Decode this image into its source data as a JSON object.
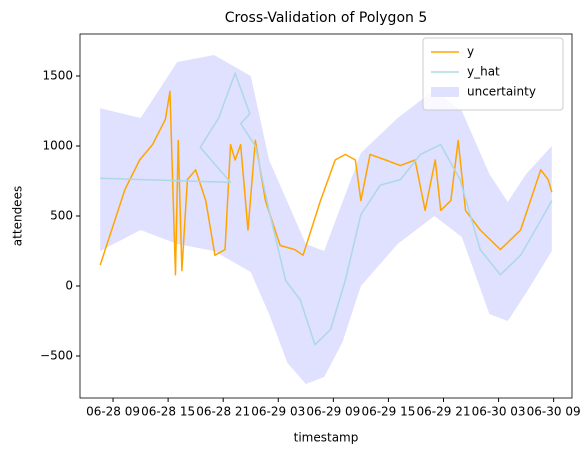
{
  "chart_data": {
    "type": "line",
    "title": "Cross-Validation of Polygon 5",
    "x_label": "timestamp",
    "y_label": "attendees",
    "xlim": [
      "06-28 05:24",
      "06-30 11:00"
    ],
    "xticks": [
      {
        "value": "06-28 09:00",
        "label": "06-28 09"
      },
      {
        "value": "06-28 15:00",
        "label": "06-28 15"
      },
      {
        "value": "06-28 21:00",
        "label": "06-28 21"
      },
      {
        "value": "06-29 03:00",
        "label": "06-29 03"
      },
      {
        "value": "06-29 09:00",
        "label": "06-29 09"
      },
      {
        "value": "06-29 15:00",
        "label": "06-29 15"
      },
      {
        "value": "06-29 21:00",
        "label": "06-29 21"
      },
      {
        "value": "06-30 03:00",
        "label": "06-30 03"
      },
      {
        "value": "06-30 09:00",
        "label": "06-30 09"
      }
    ],
    "ylim": [
      -800,
      1800
    ],
    "yticks": [
      {
        "value": -500,
        "label": "−500"
      },
      0,
      500,
      1000,
      1500
    ],
    "legend": "upper right",
    "band": {
      "name": "uncertainty",
      "color": "#e0e0ff",
      "x": [
        "06-28 07:36",
        "06-28 12:00",
        "06-28 16:00",
        "06-28 20:00",
        "06-29 00:00",
        "06-29 02:00",
        "06-29 04:00",
        "06-29 06:00",
        "06-29 08:00",
        "06-29 10:00",
        "06-29 12:00",
        "06-29 16:00",
        "06-29 20:00",
        "06-29 23:00",
        "06-30 02:00",
        "06-30 04:00",
        "06-30 06:00",
        "06-30 08:48"
      ],
      "lower": [
        250,
        400,
        300,
        250,
        100,
        -200,
        -550,
        -700,
        -650,
        -400,
        0,
        300,
        500,
        350,
        -200,
        -250,
        -50,
        250
      ],
      "upper": [
        1270,
        1200,
        1600,
        1650,
        1500,
        900,
        600,
        300,
        250,
        600,
        950,
        1200,
        1400,
        1250,
        800,
        600,
        800,
        1000
      ]
    },
    "series": [
      {
        "name": "y",
        "color": "#ffa500",
        "x": [
          "06-28 07:36",
          "06-28 09:12",
          "06-28 10:18",
          "06-28 11:54",
          "06-28 13:18",
          "06-28 14:42",
          "06-28 15:12",
          "06-28 15:48",
          "06-28 16:06",
          "06-28 16:30",
          "06-28 17:06",
          "06-28 18:00",
          "06-28 19:06",
          "06-28 20:06",
          "06-28 21:12",
          "06-28 21:48",
          "06-28 22:18",
          "06-28 22:54",
          "06-28 23:42",
          "06-29 00:30",
          "06-29 01:36",
          "06-29 03:12",
          "06-29 04:48",
          "06-29 05:42",
          "06-29 07:36",
          "06-29 09:12",
          "06-29 10:18",
          "06-29 11:24",
          "06-29 12:00",
          "06-29 13:00",
          "06-29 14:42",
          "06-29 16:18",
          "06-29 17:54",
          "06-29 19:00",
          "06-29 20:06",
          "06-29 20:42",
          "06-29 21:48",
          "06-29 22:36",
          "06-29 23:24",
          "06-30 01:00",
          "06-30 03:12",
          "06-30 05:24",
          "06-30 07:36",
          "06-30 08:24",
          "06-30 08:48"
        ],
        "values": [
          150,
          470,
          690,
          900,
          1010,
          1190,
          1390,
          80,
          1040,
          110,
          760,
          830,
          610,
          220,
          260,
          1010,
          900,
          1010,
          400,
          1040,
          610,
          290,
          260,
          220,
          610,
          900,
          940,
          900,
          610,
          940,
          900,
          860,
          900,
          540,
          900,
          540,
          610,
          1040,
          540,
          400,
          260,
          400,
          830,
          760,
          670
        ]
      },
      {
        "name": "y_hat",
        "color": "#add8e6",
        "x": [
          "06-28 07:36",
          "06-28 21:48",
          "06-28 18:30",
          "06-28 20:30",
          "06-28 22:18",
          "06-28 23:54",
          "06-28 22:54",
          "06-29 00:30",
          "06-29 02:06",
          "06-29 03:48",
          "06-29 05:24",
          "06-29 07:00",
          "06-29 08:42",
          "06-29 10:18",
          "06-29 12:00",
          "06-29 14:06",
          "06-29 16:18",
          "06-29 18:30",
          "06-29 20:42",
          "06-29 22:48",
          "06-30 01:00",
          "06-30 03:12",
          "06-30 05:24",
          "06-30 07:36",
          "06-30 08:48"
        ],
        "values": [
          770,
          740,
          990,
          1200,
          1520,
          1230,
          1160,
          1000,
          510,
          40,
          -100,
          -420,
          -310,
          40,
          510,
          720,
          760,
          940,
          1010,
          760,
          260,
          80,
          220,
          470,
          610
        ]
      }
    ]
  }
}
